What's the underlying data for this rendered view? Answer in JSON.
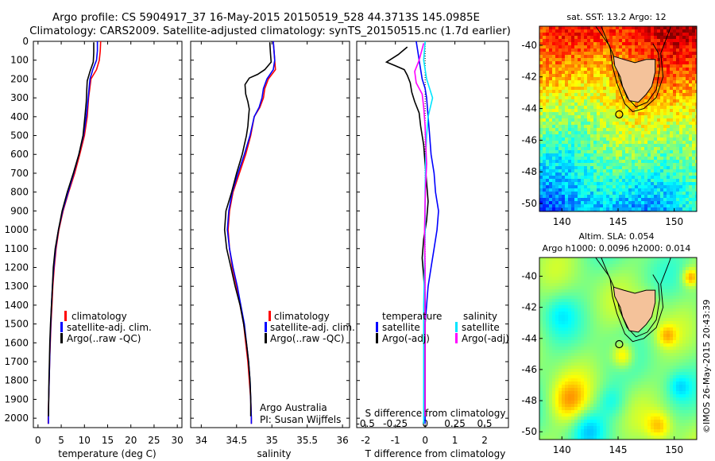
{
  "header": {
    "line1": "Argo profile: CS 5904917_37 16-May-2015 20150519_528 44.3713S 145.0985E",
    "line2": "Climatology: CARS2009. Satellite-adjusted climatology: synTS_20150515.nc (1.7d earlier)"
  },
  "depth_ticks": [
    "0",
    "100",
    "200",
    "300",
    "400",
    "500",
    "600",
    "700",
    "800",
    "900",
    "1000",
    "1100",
    "1200",
    "1300",
    "1400",
    "1500",
    "1600",
    "1700",
    "1800",
    "1900",
    "2000"
  ],
  "colors": {
    "climatology": "#ff0000",
    "satellite": "#0000ff",
    "argo": "#000000",
    "salinity_sat": "#00e5ff",
    "salinity_argo": "#ff00ff"
  },
  "legend_profile": {
    "climatology": "climatology",
    "satellite": "satellite-adj. clim.",
    "argo": "Argo(..raw -QC)"
  },
  "legend_diff": {
    "temperature": "temperature",
    "salinity": "salinity",
    "satellite": "satellite",
    "argo": "Argo(-adj)"
  },
  "salinity_note": {
    "line1": "Argo Australia",
    "line2": "PI: Susan Wijffels"
  },
  "maps": {
    "sst_title": "sat. SST: 13.2 Argo: 12",
    "sla_title1": "Altim. SLA: 0.054",
    "sla_title2": "Argo h1000: 0.0096 h2000: 0.014",
    "lat_ticks": [
      "-40",
      "-42",
      "-44",
      "-46",
      "-48",
      "-50"
    ],
    "lon_ticks": [
      "140",
      "145",
      "150"
    ],
    "profile_lon": 145.1,
    "profile_lat": -44.37
  },
  "footer_text": "©IMOS 26-May-2015 20:43:39",
  "chart_data": [
    {
      "type": "line",
      "title": "",
      "xlabel": "temperature (deg C)",
      "ylabel": "",
      "xlim": [
        -1,
        31
      ],
      "ylim": [
        2050,
        0
      ],
      "xticks": [
        "0",
        "5",
        "10",
        "15",
        "20",
        "25",
        "30"
      ],
      "series": [
        {
          "name": "climatology",
          "points": [
            [
              13.5,
              0
            ],
            [
              13.4,
              50
            ],
            [
              13.2,
              100
            ],
            [
              12.6,
              150
            ],
            [
              11.4,
              200
            ],
            [
              10.9,
              300
            ],
            [
              10.6,
              400
            ],
            [
              10.0,
              500
            ],
            [
              9.0,
              600
            ],
            [
              7.9,
              700
            ],
            [
              6.6,
              800
            ],
            [
              5.4,
              900
            ],
            [
              4.5,
              1000
            ],
            [
              3.9,
              1100
            ],
            [
              3.5,
              1200
            ],
            [
              3.2,
              1300
            ],
            [
              3.0,
              1400
            ],
            [
              2.8,
              1500
            ],
            [
              2.65,
              1600
            ],
            [
              2.5,
              1700
            ],
            [
              2.4,
              1800
            ],
            [
              2.3,
              1900
            ],
            [
              2.2,
              2000
            ],
            [
              2.2,
              2030
            ]
          ]
        },
        {
          "name": "satellite-adj. clim.",
          "points": [
            [
              12.8,
              0
            ],
            [
              12.8,
              50
            ],
            [
              12.6,
              100
            ],
            [
              11.8,
              150
            ],
            [
              11.2,
              200
            ],
            [
              10.8,
              300
            ],
            [
              10.4,
              400
            ],
            [
              9.8,
              500
            ],
            [
              8.8,
              600
            ],
            [
              7.7,
              700
            ],
            [
              6.5,
              800
            ],
            [
              5.3,
              900
            ],
            [
              4.4,
              1000
            ],
            [
              3.8,
              1100
            ],
            [
              3.4,
              1200
            ],
            [
              3.1,
              1300
            ],
            [
              2.9,
              1400
            ],
            [
              2.75,
              1500
            ],
            [
              2.6,
              1600
            ],
            [
              2.5,
              1700
            ],
            [
              2.4,
              1800
            ],
            [
              2.3,
              1900
            ],
            [
              2.25,
              2000
            ],
            [
              2.25,
              2030
            ]
          ]
        },
        {
          "name": "Argo(..raw -QC)",
          "points": [
            [
              12.0,
              5
            ],
            [
              12.0,
              60
            ],
            [
              11.9,
              110
            ],
            [
              11.2,
              160
            ],
            [
              10.6,
              210
            ],
            [
              10.5,
              260
            ],
            [
              10.4,
              320
            ],
            [
              10.1,
              400
            ],
            [
              9.7,
              500
            ],
            [
              8.8,
              600
            ],
            [
              7.6,
              700
            ],
            [
              6.3,
              800
            ],
            [
              5.2,
              900
            ],
            [
              4.4,
              1000
            ],
            [
              3.7,
              1100
            ],
            [
              3.3,
              1200
            ],
            [
              3.1,
              1300
            ],
            [
              2.9,
              1400
            ],
            [
              2.7,
              1500
            ],
            [
              2.55,
              1600
            ],
            [
              2.45,
              1700
            ],
            [
              2.35,
              1800
            ],
            [
              2.3,
              1900
            ],
            [
              2.25,
              1990
            ]
          ]
        }
      ]
    },
    {
      "type": "line",
      "title": "",
      "xlabel": "salinity",
      "ylabel": "",
      "xlim": [
        33.85,
        36.1
      ],
      "ylim": [
        2050,
        0
      ],
      "xticks": [
        "34",
        "34.5",
        "35",
        "35.5",
        "36"
      ],
      "series": [
        {
          "name": "climatology",
          "points": [
            [
              35.02,
              0
            ],
            [
              35.03,
              50
            ],
            [
              35.04,
              100
            ],
            [
              35.05,
              150
            ],
            [
              34.95,
              200
            ],
            [
              34.9,
              250
            ],
            [
              34.88,
              300
            ],
            [
              34.83,
              350
            ],
            [
              34.75,
              400
            ],
            [
              34.7,
              500
            ],
            [
              34.63,
              600
            ],
            [
              34.54,
              700
            ],
            [
              34.45,
              800
            ],
            [
              34.4,
              900
            ],
            [
              34.38,
              1000
            ],
            [
              34.4,
              1100
            ],
            [
              34.44,
              1200
            ],
            [
              34.5,
              1300
            ],
            [
              34.55,
              1400
            ],
            [
              34.6,
              1500
            ],
            [
              34.63,
              1600
            ],
            [
              34.66,
              1700
            ],
            [
              34.68,
              1800
            ],
            [
              34.7,
              1900
            ],
            [
              34.71,
              2000
            ],
            [
              34.71,
              2030
            ]
          ]
        },
        {
          "name": "satellite-adj. clim.",
          "points": [
            [
              35.02,
              0
            ],
            [
              35.03,
              50
            ],
            [
              35.04,
              100
            ],
            [
              35.02,
              150
            ],
            [
              34.93,
              200
            ],
            [
              34.88,
              250
            ],
            [
              34.86,
              300
            ],
            [
              34.82,
              350
            ],
            [
              34.75,
              400
            ],
            [
              34.69,
              500
            ],
            [
              34.61,
              600
            ],
            [
              34.52,
              700
            ],
            [
              34.44,
              800
            ],
            [
              34.39,
              900
            ],
            [
              34.37,
              1000
            ],
            [
              34.4,
              1100
            ],
            [
              34.45,
              1200
            ],
            [
              34.51,
              1300
            ],
            [
              34.56,
              1400
            ],
            [
              34.61,
              1500
            ],
            [
              34.64,
              1600
            ],
            [
              34.67,
              1700
            ],
            [
              34.69,
              1800
            ],
            [
              34.7,
              1900
            ],
            [
              34.71,
              2000
            ],
            [
              34.71,
              2030
            ]
          ]
        },
        {
          "name": "Argo(..raw -QC)",
          "points": [
            [
              34.97,
              5
            ],
            [
              34.98,
              60
            ],
            [
              34.99,
              110
            ],
            [
              34.9,
              150
            ],
            [
              34.8,
              175
            ],
            [
              34.68,
              195
            ],
            [
              34.62,
              230
            ],
            [
              34.63,
              280
            ],
            [
              34.66,
              320
            ],
            [
              34.68,
              360
            ],
            [
              34.67,
              400
            ],
            [
              34.66,
              450
            ],
            [
              34.64,
              500
            ],
            [
              34.58,
              600
            ],
            [
              34.5,
              700
            ],
            [
              34.43,
              800
            ],
            [
              34.35,
              900
            ],
            [
              34.33,
              1000
            ],
            [
              34.36,
              1100
            ],
            [
              34.42,
              1200
            ],
            [
              34.48,
              1300
            ],
            [
              34.55,
              1400
            ],
            [
              34.6,
              1500
            ],
            [
              34.64,
              1600
            ],
            [
              34.67,
              1700
            ],
            [
              34.69,
              1800
            ],
            [
              34.7,
              1900
            ],
            [
              34.7,
              1990
            ]
          ]
        }
      ]
    },
    {
      "type": "line",
      "title": "",
      "xlabel": "T difference from climatology",
      "xlabel2": "S difference from climatology",
      "ylabel": "",
      "xlim": [
        -2.3,
        2.8
      ],
      "ylim": [
        2050,
        0
      ],
      "xticks": [
        "-2",
        "-1",
        "0",
        "1",
        "2"
      ],
      "xticks_top": [
        "-0.5",
        "-0.25",
        "0",
        "0.25",
        "0.5"
      ],
      "series": [
        {
          "name": "satellite (temperature)",
          "points": [
            [
              -0.3,
              0
            ],
            [
              -0.25,
              50
            ],
            [
              -0.2,
              100
            ],
            [
              -0.15,
              150
            ],
            [
              -0.1,
              200
            ],
            [
              0.0,
              250
            ],
            [
              0.05,
              300
            ],
            [
              0.1,
              400
            ],
            [
              0.15,
              500
            ],
            [
              0.2,
              600
            ],
            [
              0.3,
              700
            ],
            [
              0.35,
              800
            ],
            [
              0.45,
              900
            ],
            [
              0.4,
              1000
            ],
            [
              0.3,
              1100
            ],
            [
              0.2,
              1200
            ],
            [
              0.1,
              1300
            ],
            [
              0.05,
              1400
            ],
            [
              0.0,
              1500
            ],
            [
              0.0,
              1600
            ],
            [
              0.0,
              1800
            ],
            [
              0.0,
              2000
            ],
            [
              0.0,
              2030
            ]
          ]
        },
        {
          "name": "Argo(-adj) (temperature)",
          "points": [
            [
              -0.6,
              30
            ],
            [
              -0.9,
              70
            ],
            [
              -1.3,
              110
            ],
            [
              -1.0,
              130
            ],
            [
              -0.7,
              150
            ],
            [
              -0.6,
              180
            ],
            [
              -0.5,
              220
            ],
            [
              -0.45,
              270
            ],
            [
              -0.35,
              320
            ],
            [
              -0.2,
              380
            ],
            [
              -0.15,
              450
            ],
            [
              -0.05,
              550
            ],
            [
              0.0,
              650
            ],
            [
              0.05,
              750
            ],
            [
              0.1,
              850
            ],
            [
              0.05,
              950
            ],
            [
              -0.05,
              1050
            ],
            [
              -0.1,
              1150
            ],
            [
              -0.05,
              1250
            ],
            [
              0.0,
              1350
            ],
            [
              0.0,
              1500
            ],
            [
              0.0,
              1700
            ],
            [
              0.0,
              1990
            ]
          ]
        },
        {
          "name": "satellite (salinity)",
          "points": [
            [
              0.0,
              0
            ],
            [
              -0.05,
              100
            ],
            [
              0.05,
              200
            ],
            [
              0.25,
              300
            ],
            [
              0.1,
              400
            ],
            [
              0.05,
              500
            ],
            [
              0.02,
              600
            ],
            [
              0.0,
              800
            ],
            [
              0.0,
              1000
            ],
            [
              -0.02,
              1200
            ],
            [
              -0.05,
              1400
            ],
            [
              -0.05,
              1600
            ],
            [
              -0.05,
              1800
            ],
            [
              -0.05,
              2030
            ]
          ]
        },
        {
          "name": "Argo(-adj) (salinity)",
          "points": [
            [
              -0.05,
              10
            ],
            [
              -0.2,
              100
            ],
            [
              -0.35,
              160
            ],
            [
              -0.3,
              220
            ],
            [
              -0.1,
              280
            ],
            [
              -0.05,
              350
            ],
            [
              0.0,
              450
            ],
            [
              0.02,
              550
            ],
            [
              0.05,
              650
            ],
            [
              0.02,
              750
            ],
            [
              0.0,
              850
            ],
            [
              -0.02,
              1000
            ],
            [
              0.0,
              1200
            ],
            [
              0.0,
              1400
            ],
            [
              0.0,
              1600
            ],
            [
              0.0,
              1800
            ],
            [
              0.0,
              1990
            ]
          ]
        }
      ]
    }
  ]
}
